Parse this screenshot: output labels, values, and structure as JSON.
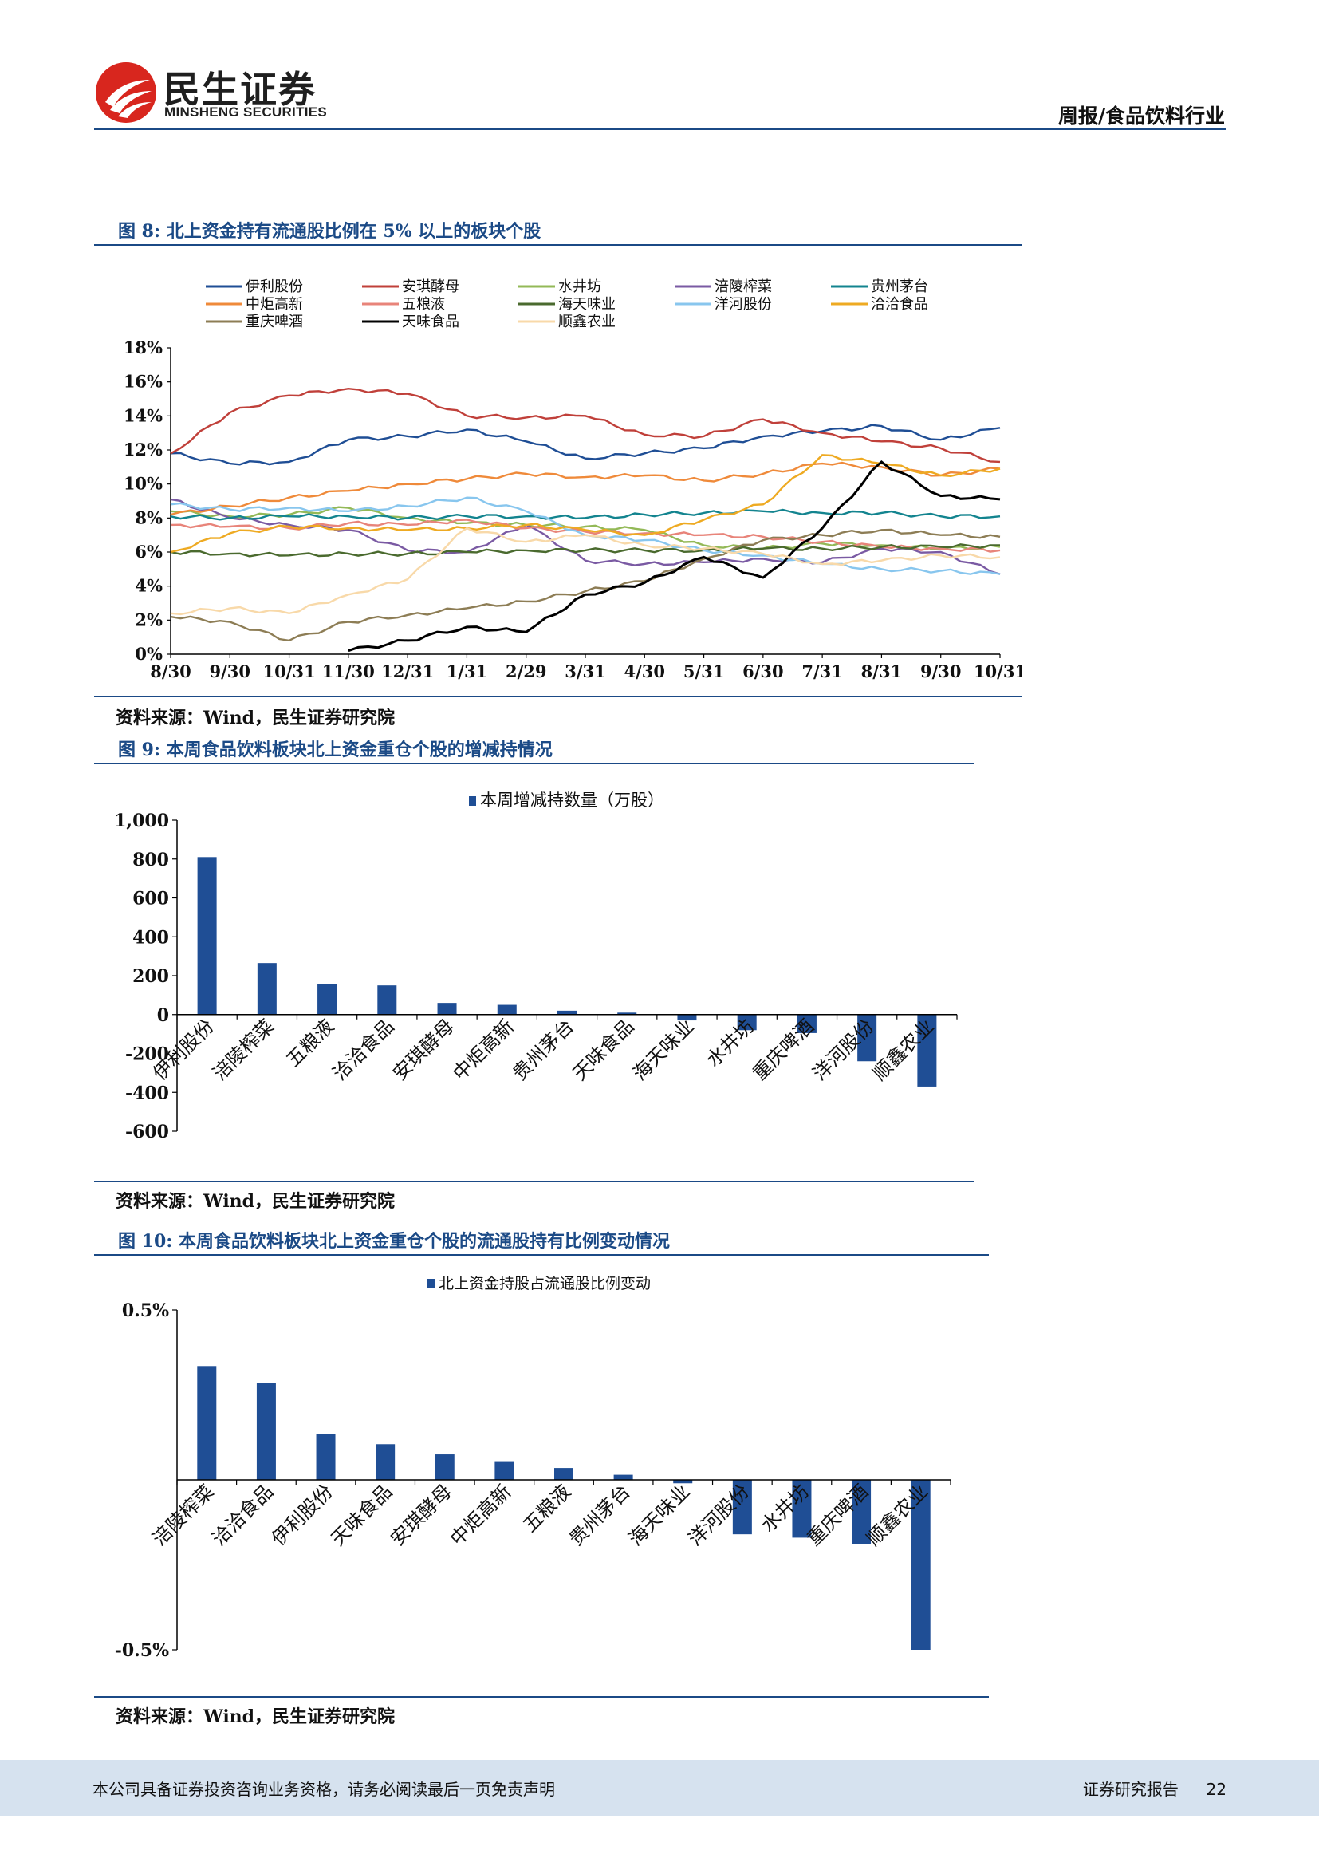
{
  "header": {
    "logo_text": "民生证券",
    "logo_en": "MINSHENG SECURITIES",
    "report_type": "周报/食品饮料行业",
    "brand_colors": {
      "red": "#d8261e",
      "blue": "#1b4a86"
    },
    "logo_icon": "minsheng-logo-icon"
  },
  "figures": {
    "fig8": {
      "title": "图 8:  北上资金持有流通股比例在 5% 以上的板块个股",
      "source": "资料来源：Wind，民生证券研究院"
    },
    "fig9": {
      "title": "图 9:  本周食品饮料板块北上资金重仓个股的增减持情况",
      "source": "资料来源：Wind，民生证券研究院"
    },
    "fig10": {
      "title": "图 10:   本周食品饮料板块北上资金重仓个股的流通股持有比例变动情况",
      "source": "资料来源：Wind，民生证券研究院"
    }
  },
  "footer": {
    "disclaimer": "本公司具备证券投资咨询业务资格，请务必阅读最后一页免责声明",
    "report_label": "证券研究报告",
    "page_number": "22"
  },
  "chart_data": [
    {
      "type": "line",
      "x_labels": [
        "8/30",
        "9/30",
        "10/31",
        "11/30",
        "12/31",
        "1/31",
        "2/29",
        "3/31",
        "4/30",
        "5/31",
        "6/30",
        "7/31",
        "8/31",
        "9/30",
        "10/31"
      ],
      "ylim": [
        0,
        18
      ],
      "y_ticks": [
        "0%",
        "2%",
        "4%",
        "6%",
        "8%",
        "10%",
        "12%",
        "14%",
        "16%",
        "18%"
      ],
      "legend_position": "top",
      "series": [
        {
          "name": "伊利股份",
          "color": "#1f4e95",
          "values": [
            11.8,
            11.2,
            11.3,
            12.6,
            12.8,
            13.2,
            12.5,
            11.5,
            11.8,
            12.1,
            12.8,
            13.1,
            13.4,
            12.6,
            13.3
          ]
        },
        {
          "name": "安琪酵母",
          "color": "#c0403a",
          "values": [
            11.8,
            14.2,
            15.2,
            15.6,
            15.3,
            14.0,
            13.9,
            14.0,
            12.9,
            12.8,
            13.8,
            13.0,
            12.5,
            12.1,
            11.3
          ]
        },
        {
          "name": "水井坊",
          "color": "#93b957",
          "values": [
            8.4,
            8.1,
            8.2,
            8.6,
            8.0,
            7.7,
            7.6,
            7.5,
            7.3,
            6.4,
            6.2,
            6.5,
            6.4,
            6.2,
            6.3
          ]
        },
        {
          "name": "涪陵榨菜",
          "color": "#7a5aa3",
          "values": [
            9.1,
            8.0,
            7.6,
            7.3,
            6.1,
            6.0,
            7.6,
            5.5,
            5.3,
            5.4,
            5.6,
            5.4,
            6.2,
            6.0,
            4.7
          ]
        },
        {
          "name": "贵州茅台",
          "color": "#13848f",
          "values": [
            8.1,
            8.0,
            8.1,
            8.1,
            8.0,
            8.1,
            8.1,
            8.0,
            8.2,
            8.3,
            8.4,
            8.3,
            8.3,
            8.1,
            8.1
          ]
        },
        {
          "name": "中炬高新",
          "color": "#ef8a3a",
          "values": [
            8.2,
            8.7,
            9.2,
            9.6,
            10.0,
            10.3,
            10.6,
            10.4,
            10.5,
            10.2,
            10.6,
            11.2,
            11.0,
            10.5,
            10.9
          ]
        },
        {
          "name": "五粮液",
          "color": "#e8847a",
          "values": [
            7.6,
            7.5,
            7.4,
            7.7,
            7.6,
            7.9,
            7.4,
            7.2,
            7.1,
            7.0,
            6.9,
            6.6,
            6.3,
            6.2,
            6.1
          ]
        },
        {
          "name": "海天味业",
          "color": "#4a6a2e",
          "values": [
            6.0,
            5.9,
            5.8,
            5.9,
            5.9,
            6.0,
            6.1,
            6.1,
            6.1,
            6.1,
            6.2,
            6.2,
            6.3,
            6.3,
            6.4
          ]
        },
        {
          "name": "洋河股份",
          "color": "#88c6ee",
          "values": [
            8.8,
            8.5,
            8.6,
            8.4,
            8.7,
            9.2,
            8.4,
            7.0,
            6.7,
            6.1,
            5.8,
            5.3,
            5.0,
            4.9,
            4.7
          ]
        },
        {
          "name": "洽洽食品",
          "color": "#eeaa22",
          "values": [
            6.0,
            7.1,
            7.5,
            7.4,
            7.3,
            7.4,
            7.6,
            7.3,
            7.0,
            7.9,
            8.8,
            11.7,
            11.2,
            10.5,
            10.9
          ]
        },
        {
          "name": "重庆啤酒",
          "color": "#8d7d55",
          "values": [
            2.2,
            1.9,
            0.8,
            1.9,
            2.3,
            2.7,
            3.1,
            3.7,
            4.3,
            5.6,
            6.7,
            7.0,
            7.3,
            7.0,
            6.9
          ]
        },
        {
          "name": "天味食品",
          "color": "#000000",
          "values": [
            null,
            null,
            null,
            0.2,
            0.8,
            1.6,
            1.3,
            3.5,
            4.2,
            5.7,
            4.5,
            7.4,
            11.3,
            9.3,
            9.1
          ]
        },
        {
          "name": "顺鑫农业",
          "color": "#f8d9a9",
          "values": [
            2.4,
            2.7,
            2.4,
            3.5,
            4.4,
            7.4,
            6.6,
            7.0,
            6.4,
            6.2,
            5.9,
            5.3,
            5.5,
            5.8,
            5.7
          ]
        }
      ]
    },
    {
      "type": "bar",
      "legend": "本周增减持数量（万股）",
      "color": "#1f4e95",
      "categories": [
        "伊利股份",
        "涪陵榨菜",
        "五粮液",
        "洽洽食品",
        "安琪酵母",
        "中炬高新",
        "贵州茅台",
        "天味食品",
        "海天味业",
        "水井坊",
        "重庆啤酒",
        "洋河股份",
        "顺鑫农业"
      ],
      "values": [
        810,
        265,
        155,
        150,
        60,
        50,
        20,
        10,
        -30,
        -80,
        -95,
        -240,
        -370
      ],
      "ylim": [
        -600,
        1000
      ],
      "y_ticks": [
        "-600",
        "-400",
        "-200",
        "0",
        "200",
        "400",
        "600",
        "800",
        "1,000"
      ]
    },
    {
      "type": "bar",
      "legend": "北上资金持股占流通股比例变动",
      "color": "#1f4e95",
      "categories": [
        "涪陵榨菜",
        "洽洽食品",
        "伊利股份",
        "天味食品",
        "安琪酵母",
        "中炬高新",
        "五粮液",
        "贵州茅台",
        "海天味业",
        "洋河股份",
        "水井坊",
        "重庆啤酒",
        "顺鑫农业"
      ],
      "values": [
        0.335,
        0.285,
        0.135,
        0.105,
        0.075,
        0.055,
        0.035,
        0.015,
        -0.01,
        -0.16,
        -0.17,
        -0.19,
        -0.5
      ],
      "ylim": [
        -0.5,
        0.5
      ],
      "y_ticks": [
        "-0.5%",
        "0.5%"
      ]
    }
  ]
}
